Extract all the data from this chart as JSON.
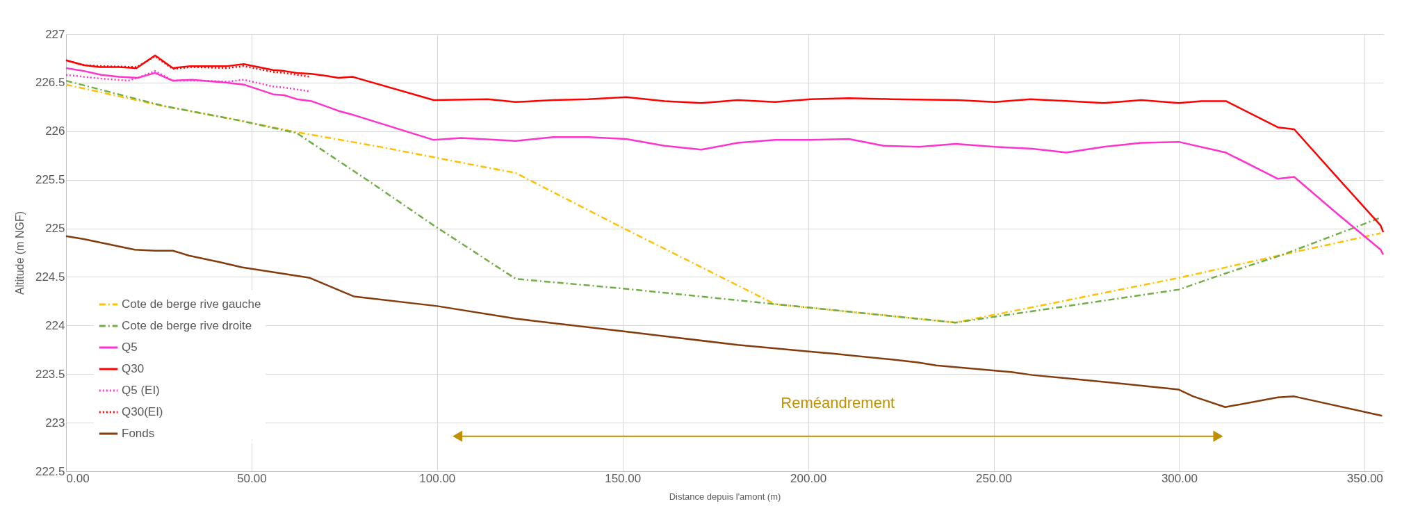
{
  "chart_data": {
    "type": "line",
    "xlabel": "Distance depuis l'amont (m)",
    "ylabel": "Altitude (m NGF)",
    "xlim": [
      0,
      355
    ],
    "ylim": [
      222.5,
      227
    ],
    "xticks": [
      {
        "value": 0,
        "label": "0.00"
      },
      {
        "value": 50,
        "label": "50.00"
      },
      {
        "value": 100,
        "label": "100.00"
      },
      {
        "value": 150,
        "label": "150.00"
      },
      {
        "value": 200,
        "label": "200.00"
      },
      {
        "value": 250,
        "label": "250.00"
      },
      {
        "value": 300,
        "label": "300.00"
      },
      {
        "value": 350,
        "label": "350.00"
      }
    ],
    "yticks": [
      222.5,
      223,
      223.5,
      224,
      224.5,
      225,
      225.5,
      226,
      226.5,
      227
    ],
    "grid": true,
    "legend": "bottom left",
    "annotations": [
      "Reméandrement"
    ],
    "series": [
      {
        "name": "Cote de berge rive gauche",
        "color": "#ffc000",
        "line_style": "dashdot",
        "x": [
          0,
          26.1,
          46.8,
          62.2,
          84.5,
          107.5,
          121.2,
          150.3,
          191.1,
          239.7,
          299.9,
          328,
          354.3
        ],
        "values": [
          226.48,
          226.26,
          226.11,
          225.99,
          225.84,
          225.67,
          225.57,
          225.0,
          224.22,
          224.03,
          224.49,
          224.73,
          224.95
        ]
      },
      {
        "name": "Cote de berge rive droite",
        "color": "#70ad47",
        "line_style": "dashdot",
        "x": [
          0,
          26.3,
          46.8,
          62.2,
          81.1,
          99.1,
          121.2,
          150.3,
          191.1,
          239.7,
          299.9,
          310.4,
          328,
          354.3
        ],
        "values": [
          226.52,
          226.26,
          226.11,
          225.98,
          225.5,
          225.03,
          224.48,
          224.38,
          224.22,
          224.03,
          224.37,
          224.51,
          224.73,
          225.11
        ]
      },
      {
        "name": "Q5",
        "color": "#ff33cc",
        "line_style": "solid",
        "x": [
          0,
          4.8,
          9.5,
          14.3,
          19.4,
          24,
          28.8,
          34,
          43.4,
          47.9,
          55.8,
          58.8,
          62.2,
          66.1,
          73.4,
          77.2,
          99.1,
          106.5,
          121.2,
          131.3,
          140.7,
          151,
          161.3,
          171.2,
          181,
          191.1,
          200.7,
          211,
          220.4,
          230,
          239.7,
          250.3,
          260.4,
          269.6,
          279.7,
          289.8,
          299.9,
          312.6,
          326.6,
          331,
          342,
          354.3,
          355
        ],
        "values": [
          226.65,
          226.62,
          226.58,
          226.56,
          226.55,
          226.6,
          226.52,
          226.53,
          226.5,
          226.48,
          226.38,
          226.37,
          226.33,
          226.31,
          226.21,
          226.17,
          225.91,
          225.93,
          225.9,
          225.94,
          225.94,
          225.92,
          225.85,
          225.81,
          225.88,
          225.91,
          225.91,
          225.92,
          225.85,
          225.84,
          225.87,
          225.84,
          225.82,
          225.78,
          225.84,
          225.88,
          225.89,
          225.78,
          225.51,
          225.53,
          225.17,
          224.78,
          224.73
        ]
      },
      {
        "name": "Q30",
        "color": "#ff0000",
        "line_style": "solid",
        "x": [
          0,
          4.8,
          9.1,
          14.3,
          19,
          24,
          28.8,
          33.5,
          43.4,
          47.9,
          55.8,
          58.8,
          62.2,
          66.1,
          70,
          73.4,
          77.2,
          99.1,
          113.7,
          121.2,
          131.3,
          140.7,
          151,
          161.3,
          171.2,
          181,
          191.1,
          200.7,
          211,
          222.4,
          240.2,
          250.3,
          259.9,
          279.7,
          289.8,
          299.9,
          306,
          312.6,
          326.6,
          331,
          342,
          354.3,
          355
        ],
        "values": [
          226.73,
          226.68,
          226.66,
          226.66,
          226.65,
          226.78,
          226.65,
          226.67,
          226.67,
          226.69,
          226.63,
          226.62,
          226.6,
          226.59,
          226.57,
          226.55,
          226.56,
          226.32,
          226.33,
          226.3,
          226.32,
          226.33,
          226.35,
          226.31,
          226.29,
          226.32,
          226.3,
          226.33,
          226.34,
          226.33,
          226.32,
          226.3,
          226.33,
          226.29,
          226.32,
          226.29,
          226.31,
          226.31,
          226.04,
          226.02,
          225.55,
          225.03,
          224.96
        ]
      },
      {
        "name": "Q5 (EI)",
        "color": "#ff33cc",
        "line_style": "dotted",
        "x": [
          0,
          4.8,
          10,
          16.8,
          19.4,
          24,
          28.8,
          37.4,
          43.4,
          47.9,
          55.8,
          58.8,
          65.7
        ],
        "values": [
          226.58,
          226.56,
          226.54,
          226.52,
          226.55,
          226.62,
          226.52,
          226.52,
          226.51,
          226.53,
          226.46,
          226.45,
          226.41
        ]
      },
      {
        "name": "Q30(EI)",
        "color": "#ff0000",
        "line_style": "dotted",
        "x": [
          0,
          4.8,
          10,
          19,
          24,
          28.8,
          33.5,
          43.4,
          47.9,
          55.8,
          58.8,
          65.7
        ],
        "values": [
          226.73,
          226.68,
          226.67,
          226.66,
          226.77,
          226.64,
          226.66,
          226.65,
          226.67,
          226.61,
          226.6,
          226.56
        ]
      },
      {
        "name": "Fonds",
        "color": "#843c0c",
        "line_style": "solid",
        "x": [
          0,
          4.8,
          18.5,
          24,
          28.8,
          33.1,
          41.7,
          47.3,
          65.7,
          77.5,
          100,
          121.2,
          150.3,
          161.3,
          181,
          200.7,
          206.7,
          222.6,
          229.6,
          234.5,
          255.1,
          260.4,
          285,
          299.9,
          303.8,
          312.4,
          326.6,
          331,
          354.7
        ],
        "values": [
          224.92,
          224.89,
          224.78,
          224.77,
          224.77,
          224.72,
          224.65,
          224.6,
          224.49,
          224.3,
          224.2,
          224.07,
          223.94,
          223.89,
          223.8,
          223.73,
          223.71,
          223.65,
          223.62,
          223.59,
          223.52,
          223.49,
          223.4,
          223.34,
          223.27,
          223.16,
          223.26,
          223.27,
          223.07
        ]
      },
      {
        "type": "line",
        "color": "#bf9000",
        "line_style": "solid",
        "marker": "triangle",
        "x": [
          105.6,
          310.4
        ],
        "values": [
          222.86,
          222.86
        ]
      }
    ]
  }
}
